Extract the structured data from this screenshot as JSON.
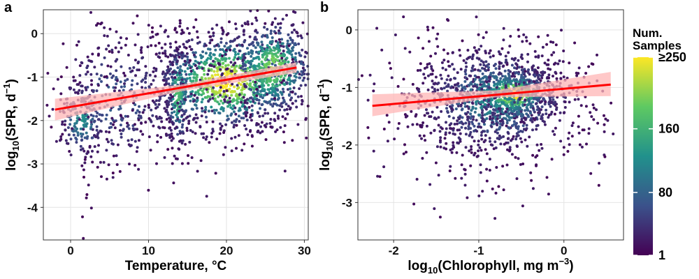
{
  "panels": {
    "a": {
      "letter": "a"
    },
    "b": {
      "letter": "b"
    }
  },
  "legend": {
    "title_line1": "Num.",
    "title_line2": "Samples",
    "ticks": [
      {
        "value": 250,
        "label": "≥250"
      },
      {
        "value": 160,
        "label": "160"
      },
      {
        "value": 80,
        "label": "80"
      },
      {
        "value": 1,
        "label": "1"
      }
    ],
    "colors": [
      "#440154",
      "#3b528b",
      "#21918c",
      "#5ec962",
      "#fde725"
    ]
  },
  "fit_line_color": "#ff0000",
  "ci_band_color": "#ffb6b6",
  "chart_data": [
    {
      "type": "scatter",
      "panel": "a",
      "xlabel": "Temperature, °C",
      "ylabel_main": "log",
      "ylabel_sub": "10",
      "ylabel_rest": "(SPR, d",
      "ylabel_sup": "−1",
      "ylabel_end": ")",
      "xlim": [
        -3.5,
        30.5
      ],
      "ylim": [
        -4.75,
        0.55
      ],
      "xticks": [
        {
          "v": 0,
          "label": "0"
        },
        {
          "v": 10,
          "label": "10"
        },
        {
          "v": 20,
          "label": "20"
        },
        {
          "v": 30,
          "label": "30"
        }
      ],
      "yticks": [
        {
          "v": 0,
          "label": "0"
        },
        {
          "v": -1,
          "label": "-1"
        },
        {
          "v": -2,
          "label": "-2"
        },
        {
          "v": -3,
          "label": "-3"
        },
        {
          "v": -4,
          "label": "-4"
        }
      ],
      "grid": true,
      "fit": {
        "x": [
          -2,
          29
        ],
        "y": [
          -1.75,
          -0.78
        ]
      },
      "ci": {
        "x": [
          -2,
          14,
          29
        ],
        "lower": [
          -2.0,
          -1.33,
          -0.9
        ],
        "upper": [
          -1.5,
          -1.18,
          -0.66
        ]
      },
      "point_clusters": [
        {
          "cx": 20,
          "cy": -1.1,
          "sx": 4.5,
          "sy": 0.55,
          "n": 900,
          "density": 1.0
        },
        {
          "cx": 26,
          "cy": -0.8,
          "sx": 2.5,
          "sy": 0.55,
          "n": 500,
          "density": 0.8
        },
        {
          "cx": 13.8,
          "cy": -1.4,
          "sx": 0.8,
          "sy": 0.6,
          "n": 180,
          "density": 0.65
        },
        {
          "cx": 1.5,
          "cy": -2.0,
          "sx": 1.5,
          "sy": 0.4,
          "n": 180,
          "density": 0.45
        },
        {
          "cx": 6,
          "cy": -1.5,
          "sx": 4,
          "sy": 0.8,
          "n": 260,
          "density": 0.25
        },
        {
          "cx": 15,
          "cy": -1.3,
          "sx": 7,
          "sy": 0.9,
          "n": 320,
          "density": 0.1
        },
        {
          "cx": 2,
          "cy": -3.6,
          "sx": 0.6,
          "sy": 0.6,
          "n": 8,
          "density": 0.0
        }
      ]
    },
    {
      "type": "scatter",
      "panel": "b",
      "xlabel_main": "log",
      "xlabel_sub": "10",
      "xlabel_rest": "(Chlorophyll, mg m",
      "xlabel_sup": "−3",
      "xlabel_end": ")",
      "ylabel_main": "log",
      "ylabel_sub": "10",
      "ylabel_rest": "(SPR, d",
      "ylabel_sup": "−1",
      "ylabel_end": ")",
      "xlim": [
        -2.42,
        0.7
      ],
      "ylim": [
        -3.65,
        0.35
      ],
      "xticks": [
        {
          "v": -2,
          "label": "-2"
        },
        {
          "v": -1,
          "label": "-1"
        },
        {
          "v": 0,
          "label": "0"
        }
      ],
      "yticks": [
        {
          "v": 0,
          "label": "0"
        },
        {
          "v": -1,
          "label": "-1"
        },
        {
          "v": -2,
          "label": "-2"
        },
        {
          "v": -3,
          "label": "-3"
        }
      ],
      "grid": true,
      "fit": {
        "x": [
          -2.25,
          0.55
        ],
        "y": [
          -1.32,
          -0.95
        ]
      },
      "ci": {
        "x": [
          -2.25,
          -0.8,
          0.55
        ],
        "lower": [
          -1.5,
          -1.17,
          -1.15
        ],
        "upper": [
          -1.12,
          -1.05,
          -0.73
        ]
      },
      "point_clusters": [
        {
          "cx": -0.6,
          "cy": -1.12,
          "sx": 0.22,
          "sy": 0.2,
          "n": 500,
          "density": 1.0
        },
        {
          "cx": -0.8,
          "cy": -1.2,
          "sx": 0.45,
          "sy": 0.45,
          "n": 700,
          "density": 0.45
        },
        {
          "cx": -0.9,
          "cy": -1.3,
          "sx": 0.7,
          "sy": 0.7,
          "n": 500,
          "density": 0.1
        }
      ]
    }
  ]
}
